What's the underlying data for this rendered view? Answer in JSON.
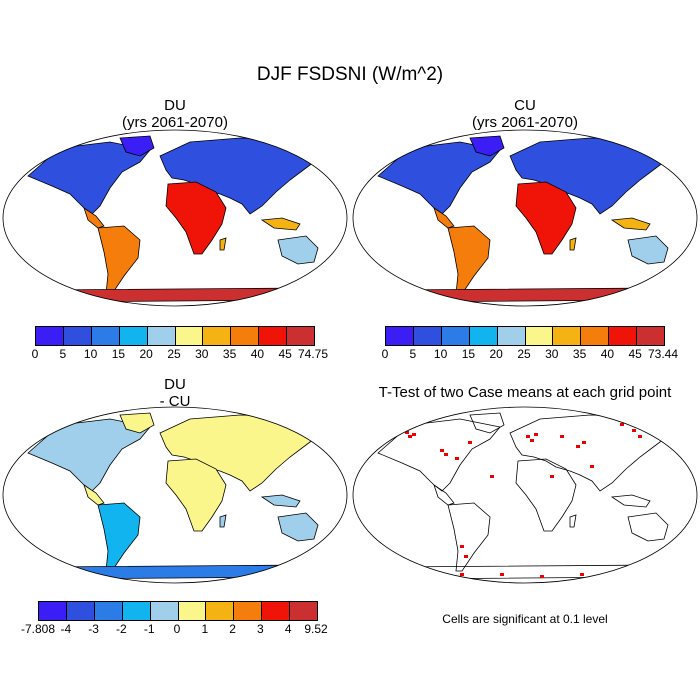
{
  "figure": {
    "title": "DJF FSDSNI (W/m^2)",
    "panels": [
      {
        "title_line1": "DU",
        "title_line2": "(yrs 2061-2070)"
      },
      {
        "title_line1": "CU",
        "title_line2": "(yrs 2061-2070)"
      },
      {
        "title_line1": "DU",
        "title_line2": "- CU"
      },
      {
        "title_line1": "T-Test of two Case means at each grid point",
        "title_line2": ""
      }
    ],
    "note": "Cells are significant at 0.1 level"
  },
  "colorbars": {
    "abs_du": {
      "colors": [
        "#3a1ef5",
        "#2f50de",
        "#2b7ce6",
        "#11b4ef",
        "#9fcfea",
        "#fbf68c",
        "#f5b313",
        "#f57d0c",
        "#ef1308",
        "#cc2f2f"
      ],
      "labels": [
        "0",
        "5",
        "10",
        "15",
        "20",
        "25",
        "30",
        "35",
        "40",
        "45",
        "74.75"
      ]
    },
    "abs_cu": {
      "colors": [
        "#3a1ef5",
        "#2f50de",
        "#2b7ce6",
        "#11b4ef",
        "#9fcfea",
        "#fbf68c",
        "#f5b313",
        "#f57d0c",
        "#ef1308",
        "#cc2f2f"
      ],
      "labels": [
        "0",
        "5",
        "10",
        "15",
        "20",
        "25",
        "30",
        "35",
        "40",
        "45",
        "73.44"
      ]
    },
    "diff": {
      "colors": [
        "#3a1ef5",
        "#2f50de",
        "#2b7ce6",
        "#11b4ef",
        "#9fcfea",
        "#fbf68c",
        "#f5b313",
        "#f57d0c",
        "#ef1308",
        "#cc2f2f"
      ],
      "labels": [
        "-7.808",
        "-4",
        "-3",
        "-2",
        "-1",
        "0",
        "1",
        "2",
        "3",
        "4",
        "9.52"
      ]
    }
  },
  "map_colors": {
    "ocean": "#ffffff",
    "outline": "#000000",
    "signif": "#ee0000"
  }
}
